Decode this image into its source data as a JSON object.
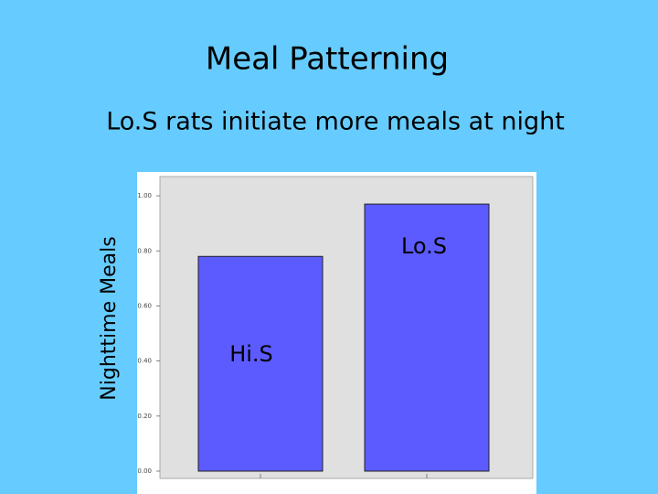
{
  "chart_data": {
    "type": "bar",
    "title": "Meal Patterning",
    "subtitle": "Lo.S rats initiate more meals at night",
    "y_label": "Nighttime Meals",
    "categories": [
      "Hi.S",
      "Lo.S"
    ],
    "values": [
      0.78,
      0.97
    ],
    "color": "#5b5bff",
    "ylim": [
      0,
      1.07
    ],
    "yticks": [
      {
        "value": 0,
        "label": "0.00"
      },
      {
        "value": 0.2,
        "label": "0.20"
      },
      {
        "value": 0.4,
        "label": "0.40"
      },
      {
        "value": 0.6,
        "label": "0.60"
      },
      {
        "value": 0.8,
        "label": "0.80"
      },
      {
        "value": 1,
        "label": "1.00"
      }
    ]
  }
}
